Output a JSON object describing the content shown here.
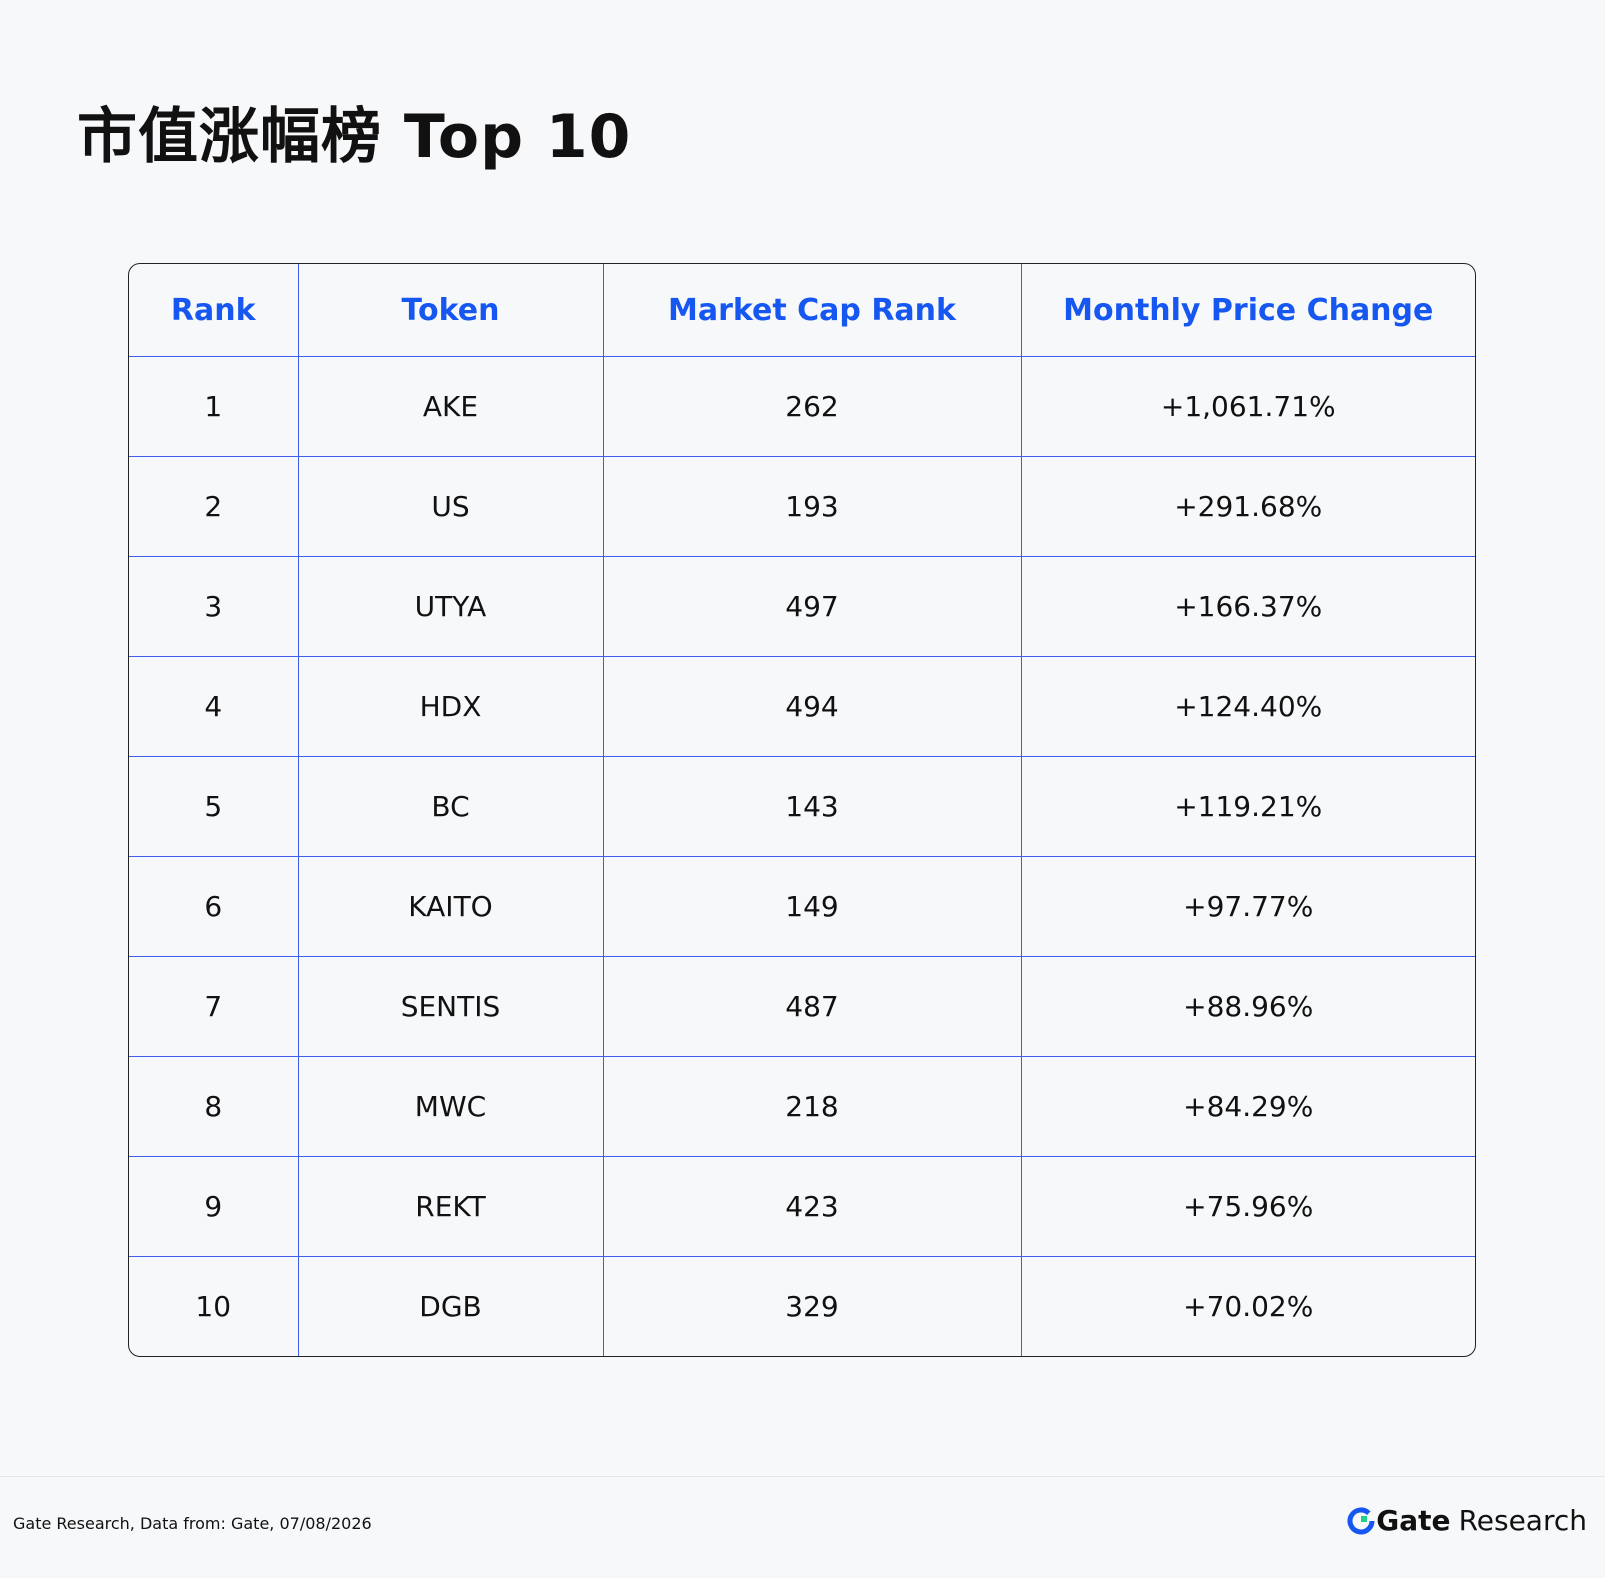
{
  "header": {
    "title": "市值涨幅榜 Top 10"
  },
  "table": {
    "columns": [
      "Rank",
      "Token",
      "Market Cap Rank",
      "Monthly Price Change"
    ],
    "rows": [
      [
        1,
        "AKE",
        262,
        "+1,061.71%"
      ],
      [
        2,
        "US",
        193,
        "+291.68%"
      ],
      [
        3,
        "UTYA",
        497,
        "+166.37%"
      ],
      [
        4,
        "HDX",
        494,
        "+124.40%"
      ],
      [
        5,
        "BC",
        143,
        "+119.21%"
      ],
      [
        6,
        "KAITO",
        149,
        "+97.77%"
      ],
      [
        7,
        "SENTIS",
        487,
        "+88.96%"
      ],
      [
        8,
        "MWC",
        218,
        "+84.29%"
      ],
      [
        9,
        "REKT",
        423,
        "+75.96%"
      ],
      [
        10,
        "DGB",
        329,
        "+70.02%"
      ]
    ]
  },
  "footer": {
    "source": "Gate Research, Data from: Gate, 07/08/2026",
    "brand": "Gate",
    "brand_suffix": "Research"
  }
}
